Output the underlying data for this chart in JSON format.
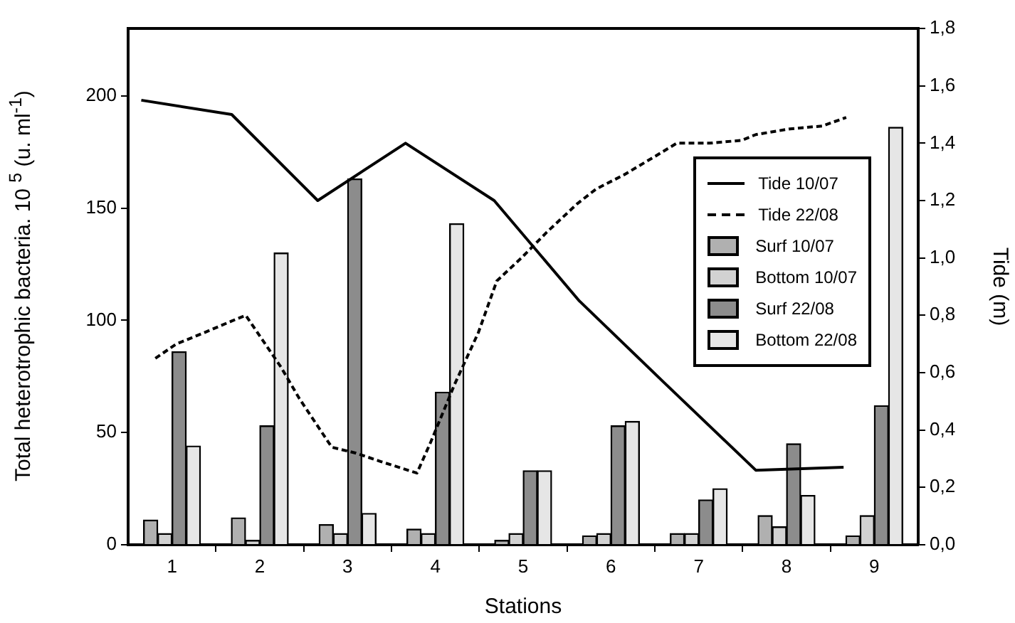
{
  "chart_data": {
    "type": "bar",
    "xlabel": "Stations",
    "ylabel": "Total heterotrophic bacteria. 10 $^{5}$ (u. ml$^{-1}$)",
    "y2label": "Tide (m)",
    "x": [
      1,
      2,
      3,
      4,
      5,
      6,
      7,
      8,
      9
    ],
    "xlim": [
      0.5,
      9.5
    ],
    "xticks": [
      1,
      {
        "value": 1.5,
        "label": null
      },
      2,
      {
        "value": 2.5,
        "label": null
      },
      3,
      {
        "value": 3.5,
        "label": null
      },
      4,
      {
        "value": 4.5,
        "label": null
      },
      5,
      {
        "value": 5.5,
        "label": null
      },
      6,
      {
        "value": 6.5,
        "label": null
      },
      7,
      {
        "value": 7.5,
        "label": null
      },
      8,
      {
        "value": 8.5,
        "label": null
      },
      9
    ],
    "series": [
      {
        "name": "Tide 10/07",
        "type": "line",
        "axis": "y2",
        "color": "#000000",
        "line_style": "solid",
        "x": [
          0.65,
          1.68,
          2.66,
          3.66,
          4.67,
          5.64,
          6.59,
          7.65,
          8.65
        ],
        "values": [
          1.55,
          1.5,
          1.2,
          1.4,
          1.2,
          0.85,
          0.57,
          0.26,
          0.27
        ]
      },
      {
        "name": "Tide 22/08",
        "type": "line",
        "axis": "y2",
        "color": "#000000",
        "line_style": "dashed",
        "x": [
          0.81,
          1.05,
          1.37,
          1.68,
          1.84,
          2.24,
          2.45,
          2.82,
          3.09,
          3.38,
          3.79,
          3.95,
          4.22,
          4.49,
          4.7,
          4.98,
          5.27,
          5.62,
          5.83,
          6.15,
          6.48,
          6.75,
          7.12,
          7.49,
          7.65,
          8.04,
          8.41,
          8.68
        ],
        "values": [
          0.65,
          0.7,
          0.74,
          0.78,
          0.8,
          0.62,
          0.51,
          0.34,
          0.32,
          0.29,
          0.25,
          0.36,
          0.56,
          0.74,
          0.92,
          1.0,
          1.09,
          1.19,
          1.24,
          1.29,
          1.35,
          1.4,
          1.4,
          1.41,
          1.43,
          1.45,
          1.46,
          1.49
        ]
      },
      {
        "name": "Surf 10/07",
        "color": "#b0b0b0",
        "values": [
          11,
          12,
          9,
          7,
          2,
          4,
          5,
          13,
          4
        ]
      },
      {
        "name": "Bottom 10/07",
        "color": "#d2d2d2",
        "values": [
          5,
          2,
          5,
          5,
          5,
          5,
          5,
          8,
          13
        ]
      },
      {
        "name": "Surf 22/08",
        "color": "#8c8c8c",
        "values": [
          86,
          53,
          163,
          68,
          33,
          53,
          20,
          45,
          62
        ]
      },
      {
        "name": "Bottom 22/08",
        "color": "#e6e6e6",
        "values": [
          44,
          130,
          14,
          143,
          33,
          55,
          25,
          22,
          186
        ]
      }
    ],
    "ylim": [
      0,
      230
    ],
    "yticks": [
      0,
      50,
      100,
      150,
      200
    ],
    "y2lim": [
      0,
      1.8
    ],
    "y2ticks": [
      {
        "value": 0,
        "label": "0,0"
      },
      {
        "value": 0.2,
        "label": "0,2"
      },
      {
        "value": 0.4,
        "label": "0,4"
      },
      {
        "value": 0.6,
        "label": "0,6"
      },
      {
        "value": 0.8,
        "label": "0,8"
      },
      {
        "value": 1.0,
        "label": "1,0"
      },
      {
        "value": 1.2,
        "label": "1,2"
      },
      {
        "value": 1.4,
        "label": "1,4"
      },
      {
        "value": 1.6,
        "label": "1,6"
      },
      {
        "value": 1.8,
        "label": "1,8"
      }
    ],
    "grid": false,
    "legend": "right"
  }
}
